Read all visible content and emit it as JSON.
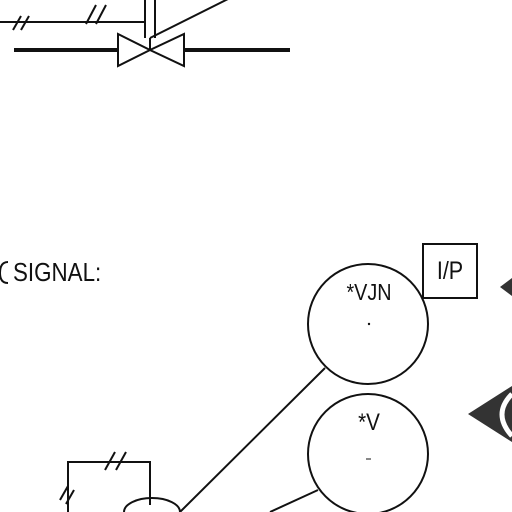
{
  "diagram": {
    "signal_caption": "SIGNAL:",
    "instruments": {
      "upper_bubble": "*VJN",
      "lower_bubble": "*V",
      "converter_box": "I/P"
    },
    "colors": {
      "line": "#111111",
      "arrow_fill": "#333333",
      "background": "#ffffff"
    },
    "symbols": {
      "valve": "gate-valve-icon",
      "hydraulic_ticks": "double-slash-signal-icon"
    }
  }
}
